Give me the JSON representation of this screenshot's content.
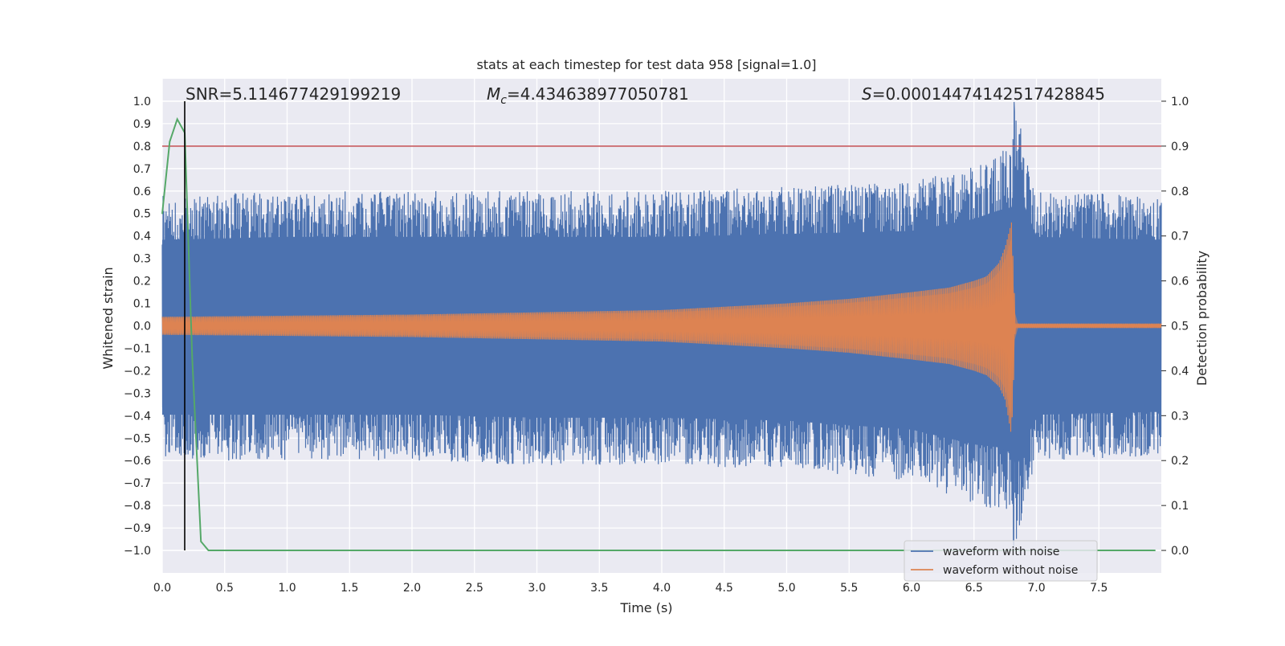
{
  "chart_data": {
    "type": "line",
    "title": "stats at each timestep for test data 958 [signal=1.0]",
    "xlabel": "Time (s)",
    "ylabel_left": "Whitened strain",
    "ylabel_right": "Detection probability",
    "xlim": [
      0.0,
      8.0
    ],
    "ylim_left": [
      -1.1,
      1.1
    ],
    "ylim_right": [
      -0.05,
      1.05
    ],
    "x_ticks": [
      0.0,
      0.5,
      1.0,
      1.5,
      2.0,
      2.5,
      3.0,
      3.5,
      4.0,
      4.5,
      5.0,
      5.5,
      6.0,
      6.5,
      7.0,
      7.5
    ],
    "y_ticks_left": [
      1.0,
      0.9,
      0.8,
      0.7,
      0.6,
      0.5,
      0.4,
      0.3,
      0.2,
      0.1,
      0.0,
      -0.1,
      -0.2,
      -0.3,
      -0.4,
      -0.5,
      -0.6,
      -0.7,
      -0.8,
      -0.9,
      -1.0
    ],
    "y_ticks_right": [
      1.0,
      0.9,
      0.8,
      0.7,
      0.6,
      0.5,
      0.4,
      0.3,
      0.2,
      0.1,
      0.0
    ],
    "grid": true,
    "annotations": {
      "snr": "SNR=5.114677429199219",
      "mc_symbol": "M",
      "mc_subscript": "c",
      "mc_value": "=4.434638977050781",
      "s_symbol": "S",
      "s_value": "=0.00014474142517428845"
    },
    "threshold_probability": 0.9,
    "detection_time": 0.18,
    "merger_time": 6.82,
    "noise_envelope": {
      "x": [
        0.0,
        1.0,
        2.0,
        3.0,
        4.0,
        5.0,
        6.0,
        6.5,
        6.7,
        6.8,
        6.82,
        7.0,
        8.0
      ],
      "upper": [
        0.58,
        0.6,
        0.6,
        0.6,
        0.6,
        0.62,
        0.64,
        0.72,
        0.78,
        0.8,
        1.0,
        0.6,
        0.58
      ],
      "lower": [
        -0.6,
        -0.6,
        -0.6,
        -0.62,
        -0.62,
        -0.64,
        -0.7,
        -0.8,
        -0.82,
        -0.86,
        -1.0,
        -0.6,
        -0.58
      ]
    },
    "clean_envelope": {
      "x": [
        0.0,
        1.0,
        2.0,
        3.0,
        4.0,
        5.0,
        5.5,
        6.0,
        6.3,
        6.5,
        6.6,
        6.7,
        6.75,
        6.8,
        6.82,
        6.83,
        8.0
      ],
      "upper": [
        0.04,
        0.045,
        0.05,
        0.06,
        0.07,
        0.1,
        0.12,
        0.15,
        0.17,
        0.2,
        0.22,
        0.28,
        0.35,
        0.46,
        0.2,
        0.01,
        0.01
      ],
      "lower": [
        -0.04,
        -0.045,
        -0.05,
        -0.06,
        -0.07,
        -0.1,
        -0.12,
        -0.15,
        -0.17,
        -0.2,
        -0.22,
        -0.27,
        -0.33,
        -0.49,
        -0.2,
        -0.01,
        -0.01
      ]
    },
    "series": [
      {
        "name": "waveform with noise",
        "color": "#4c72b0"
      },
      {
        "name": "waveform without noise",
        "color": "#dd8452"
      },
      {
        "name": "detection probability",
        "color": "#55a868",
        "x": [
          0.0,
          0.06,
          0.12,
          0.18,
          0.24,
          0.31,
          0.37,
          7.95
        ],
        "values": [
          0.75,
          0.91,
          0.96,
          0.93,
          0.43,
          0.02,
          0.0,
          0.0
        ]
      }
    ],
    "legend": {
      "location": "lower right",
      "entries": [
        {
          "label": "waveform with noise",
          "color": "#4c72b0"
        },
        {
          "label": "waveform without noise",
          "color": "#dd8452"
        }
      ]
    }
  },
  "colors": {
    "axes_bg": "#eaeaf2",
    "grid": "#ffffff",
    "noise": "#4c72b0",
    "clean": "#dd8452",
    "probability": "#55a868",
    "threshold": "#c44e52",
    "detection_line": "#000000"
  }
}
